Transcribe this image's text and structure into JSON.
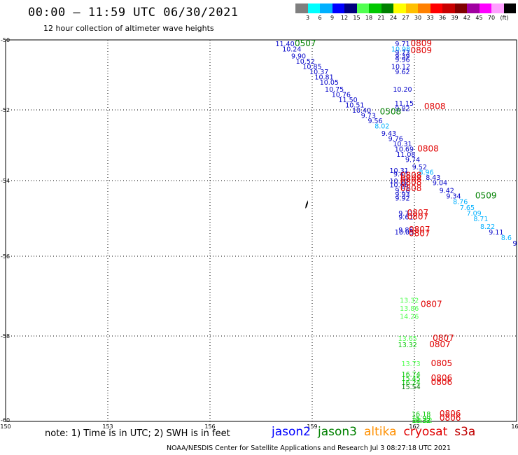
{
  "header": {
    "title": "00:00 – 11:59 UTC 06/30/2021",
    "subtitle": "12 hour collection of altimeter wave heights"
  },
  "colorbar": {
    "unit": "(ft)",
    "colors": [
      "#7f7f7f",
      "#00ffff",
      "#00b0ff",
      "#0000ff",
      "#00007f",
      "#50ff50",
      "#00c800",
      "#008000",
      "#ffff00",
      "#ffc000",
      "#ff8000",
      "#ff0000",
      "#c80000",
      "#800000",
      "#a000a0",
      "#ff00ff",
      "#ff9fff",
      "#000000"
    ],
    "labels": [
      "3",
      "6",
      "9",
      "12",
      "15",
      "18",
      "21",
      "24",
      "27",
      "30",
      "33",
      "36",
      "39",
      "42",
      "45",
      "70"
    ]
  },
  "chart_data": {
    "type": "scatter",
    "x_range": [
      150,
      165
    ],
    "y_range": [
      -50,
      -60
    ],
    "x_ticks": [
      "150",
      "153",
      "156",
      "159",
      "162",
      "165"
    ],
    "y_ticks": [
      "-50",
      "-52",
      "-54",
      "-56",
      "-58",
      "-60"
    ],
    "grid": true,
    "points": [
      {
        "x": 158.2,
        "y": -50.1,
        "v": "11.40",
        "c": "#0000c8"
      },
      {
        "x": 158.4,
        "y": -50.25,
        "v": "10.24",
        "c": "#0000c8"
      },
      {
        "x": 158.6,
        "y": -50.45,
        "v": "9.90",
        "c": "#0000c8"
      },
      {
        "x": 158.8,
        "y": -50.6,
        "v": "10.52",
        "c": "#0000c8"
      },
      {
        "x": 159.0,
        "y": -50.75,
        "v": "10.85",
        "c": "#0000c8"
      },
      {
        "x": 159.2,
        "y": -50.9,
        "v": "10.37",
        "c": "#0000c8"
      },
      {
        "x": 159.35,
        "y": -51.05,
        "v": "10.81",
        "c": "#0000c8"
      },
      {
        "x": 159.5,
        "y": -51.2,
        "v": "10.05",
        "c": "#0000c8"
      },
      {
        "x": 159.65,
        "y": -51.4,
        "v": "10.75",
        "c": "#0000c8"
      },
      {
        "x": 159.85,
        "y": -51.55,
        "v": "10.76",
        "c": "#0000c8"
      },
      {
        "x": 160.05,
        "y": -51.7,
        "v": "11.50",
        "c": "#0000c8"
      },
      {
        "x": 160.25,
        "y": -51.85,
        "v": "10.51",
        "c": "#0000c8"
      },
      {
        "x": 160.45,
        "y": -52.0,
        "v": "10.40",
        "c": "#0000c8"
      },
      {
        "x": 160.65,
        "y": -52.15,
        "v": "9.73",
        "c": "#0000c8"
      },
      {
        "x": 160.85,
        "y": -52.3,
        "v": "9.56",
        "c": "#0000c8"
      },
      {
        "x": 161.05,
        "y": -52.45,
        "v": "8.02",
        "c": "#00b0ff"
      },
      {
        "x": 161.25,
        "y": -52.65,
        "v": "9.43",
        "c": "#0000c8"
      },
      {
        "x": 161.45,
        "y": -52.8,
        "v": "9.76",
        "c": "#0000c8"
      },
      {
        "x": 161.65,
        "y": -52.95,
        "v": "10.31",
        "c": "#0000c8"
      },
      {
        "x": 161.7,
        "y": -53.1,
        "v": "10.69",
        "c": "#0000c8"
      },
      {
        "x": 161.75,
        "y": -53.25,
        "v": "11.08",
        "c": "#0000c8"
      },
      {
        "x": 161.95,
        "y": -53.4,
        "v": "9.74",
        "c": "#0000c8"
      },
      {
        "x": 162.15,
        "y": -53.6,
        "v": "9.52",
        "c": "#0000c8"
      },
      {
        "x": 162.35,
        "y": -53.75,
        "v": "8.96",
        "c": "#00b0ff"
      },
      {
        "x": 162.55,
        "y": -53.9,
        "v": "8.43",
        "c": "#0000c8"
      },
      {
        "x": 162.75,
        "y": -54.05,
        "v": "9.04",
        "c": "#0000c8"
      },
      {
        "x": 162.95,
        "y": -54.25,
        "v": "9.42",
        "c": "#0000c8"
      },
      {
        "x": 163.15,
        "y": -54.4,
        "v": "9.34",
        "c": "#0000c8"
      },
      {
        "x": 163.35,
        "y": -54.55,
        "v": "8.76",
        "c": "#00b0ff"
      },
      {
        "x": 163.55,
        "y": -54.7,
        "v": "7.65",
        "c": "#00b0ff"
      },
      {
        "x": 163.75,
        "y": -54.85,
        "v": "7.09",
        "c": "#00b0ff"
      },
      {
        "x": 163.95,
        "y": -55.0,
        "v": "8.71",
        "c": "#00b0ff"
      },
      {
        "x": 164.15,
        "y": -55.2,
        "v": "8.22",
        "c": "#00b0ff"
      },
      {
        "x": 164.4,
        "y": -55.35,
        "v": "9.11",
        "c": "#0000c8"
      },
      {
        "x": 164.7,
        "y": -55.5,
        "v": "8.6",
        "c": "#00b0ff"
      },
      {
        "x": 164.95,
        "y": -55.65,
        "v": "9",
        "c": "#0000c8"
      },
      {
        "x": 161.65,
        "y": -50.1,
        "v": "9.71",
        "c": "#0000c8"
      },
      {
        "x": 161.6,
        "y": -50.25,
        "v": "10.98",
        "c": "#00b0ff"
      },
      {
        "x": 161.65,
        "y": -50.35,
        "v": "9.73",
        "c": "#0000c8"
      },
      {
        "x": 161.65,
        "y": -50.45,
        "v": "9.39",
        "c": "#0000c8"
      },
      {
        "x": 161.65,
        "y": -50.55,
        "v": "9.96",
        "c": "#0000c8"
      },
      {
        "x": 161.6,
        "y": -50.75,
        "v": "10.12",
        "c": "#0000c8"
      },
      {
        "x": 161.65,
        "y": -50.9,
        "v": "9.62",
        "c": "#0000c8"
      },
      {
        "x": 161.65,
        "y": -51.4,
        "v": "10.20",
        "c": "#0000c8"
      },
      {
        "x": 161.7,
        "y": -51.8,
        "v": "11.15",
        "c": "#0000c8"
      },
      {
        "x": 161.65,
        "y": -51.95,
        "v": "9.82",
        "c": "#0000c8"
      },
      {
        "x": 161.55,
        "y": -53.7,
        "v": "10.31",
        "c": "#0000c8"
      },
      {
        "x": 161.6,
        "y": -53.8,
        "v": "9.43",
        "c": "#0000c8"
      },
      {
        "x": 161.55,
        "y": -54.0,
        "v": "10.10",
        "c": "#0000c8"
      },
      {
        "x": 161.55,
        "y": -54.1,
        "v": "10.66",
        "c": "#0000c8"
      },
      {
        "x": 161.65,
        "y": -54.25,
        "v": "9.26",
        "c": "#0000c8"
      },
      {
        "x": 161.65,
        "y": -54.35,
        "v": "9.93",
        "c": "#0000c8"
      },
      {
        "x": 161.65,
        "y": -54.45,
        "v": "9.92",
        "c": "#0000c8"
      },
      {
        "x": 161.75,
        "y": -54.85,
        "v": "9.71",
        "c": "#0000c8"
      },
      {
        "x": 161.75,
        "y": -54.95,
        "v": "9.61",
        "c": "#0000c8"
      },
      {
        "x": 161.75,
        "y": -55.3,
        "v": "9.85",
        "c": "#0000c8"
      },
      {
        "x": 161.7,
        "y": -55.35,
        "v": "10.05",
        "c": "#0000c8"
      },
      {
        "x": 161.85,
        "y": -57.1,
        "v": "13.32",
        "c": "#50ff50"
      },
      {
        "x": 161.85,
        "y": -57.3,
        "v": "13.86",
        "c": "#50ff50"
      },
      {
        "x": 161.85,
        "y": -57.5,
        "v": "14.26",
        "c": "#50ff50"
      },
      {
        "x": 161.8,
        "y": -58.05,
        "v": "13.65",
        "c": "#50ff50"
      },
      {
        "x": 161.8,
        "y": -58.2,
        "v": "13.32",
        "c": "#00c800"
      },
      {
        "x": 161.9,
        "y": -58.65,
        "v": "13.73",
        "c": "#50ff50"
      },
      {
        "x": 161.9,
        "y": -58.9,
        "v": "16.74",
        "c": "#00c800"
      },
      {
        "x": 161.9,
        "y": -59.0,
        "v": "15.45",
        "c": "#00c800"
      },
      {
        "x": 161.9,
        "y": -59.1,
        "v": "16.24",
        "c": "#00c800"
      },
      {
        "x": 161.9,
        "y": -59.2,
        "v": "15.54",
        "c": "#008000"
      },
      {
        "x": 162.2,
        "y": -59.85,
        "v": "16.18",
        "c": "#00c800"
      },
      {
        "x": 162.2,
        "y": -59.95,
        "v": "15.99",
        "c": "#00c800"
      },
      {
        "x": 162.25,
        "y": -60.15,
        "v": "15.62",
        "c": "#50ff50"
      },
      {
        "x": 162.2,
        "y": -60.35,
        "v": "16.32",
        "c": "#00c800"
      }
    ],
    "passes": [
      {
        "x": 158.8,
        "y": -50.1,
        "t": "0507",
        "c": "#008000"
      },
      {
        "x": 162.2,
        "y": -50.1,
        "t": "0809",
        "c": "#e00000"
      },
      {
        "x": 162.2,
        "y": -50.3,
        "t": "0809",
        "c": "#e00000"
      },
      {
        "x": 161.3,
        "y": -52.05,
        "t": "0508",
        "c": "#008000"
      },
      {
        "x": 162.6,
        "y": -51.9,
        "t": "0808",
        "c": "#e00000"
      },
      {
        "x": 162.4,
        "y": -53.1,
        "t": "0808",
        "c": "#e00000"
      },
      {
        "x": 161.9,
        "y": -53.85,
        "t": "0808",
        "c": "#e00000"
      },
      {
        "x": 161.9,
        "y": -53.95,
        "t": "0808",
        "c": "#e00000"
      },
      {
        "x": 161.9,
        "y": -54.05,
        "t": "0808",
        "c": "#e00000"
      },
      {
        "x": 161.9,
        "y": -54.2,
        "t": "0808",
        "c": "#e00000"
      },
      {
        "x": 164.1,
        "y": -54.4,
        "t": "0509",
        "c": "#008000"
      },
      {
        "x": 162.1,
        "y": -54.85,
        "t": "0807",
        "c": "#e00000"
      },
      {
        "x": 162.1,
        "y": -54.95,
        "t": "0807",
        "c": "#e00000"
      },
      {
        "x": 162.15,
        "y": -55.3,
        "t": "0807",
        "c": "#e00000"
      },
      {
        "x": 162.15,
        "y": -55.4,
        "t": "0807",
        "c": "#e00000"
      },
      {
        "x": 162.5,
        "y": -57.2,
        "t": "0807",
        "c": "#e00000"
      },
      {
        "x": 162.85,
        "y": -58.05,
        "t": "0807",
        "c": "#e00000"
      },
      {
        "x": 162.75,
        "y": -58.2,
        "t": "0807",
        "c": "#e00000"
      },
      {
        "x": 162.8,
        "y": -58.65,
        "t": "0805",
        "c": "#e00000"
      },
      {
        "x": 162.8,
        "y": -59.0,
        "t": "0806",
        "c": "#e00000"
      },
      {
        "x": 162.8,
        "y": -59.1,
        "t": "0806",
        "c": "#e00000"
      },
      {
        "x": 163.05,
        "y": -59.85,
        "t": "0806",
        "c": "#e00000"
      },
      {
        "x": 163.05,
        "y": -59.95,
        "t": "0806",
        "c": "#e00000"
      }
    ]
  },
  "footer": {
    "note": "note:  1) Time is in UTC;  2) SWH is in feet",
    "satellites": [
      {
        "name": "jason2",
        "color": "#0000ff"
      },
      {
        "name": "jason3",
        "color": "#008000"
      },
      {
        "name": "altika",
        "color": "#ff9000"
      },
      {
        "name": "cryosat",
        "color": "#e00000"
      },
      {
        "name": "s3a",
        "color": "#c00000"
      }
    ],
    "credit": "NOAA/NESDIS Center for Satellite Applications and Research    Jul  3 08:27:18 UTC 2021"
  }
}
